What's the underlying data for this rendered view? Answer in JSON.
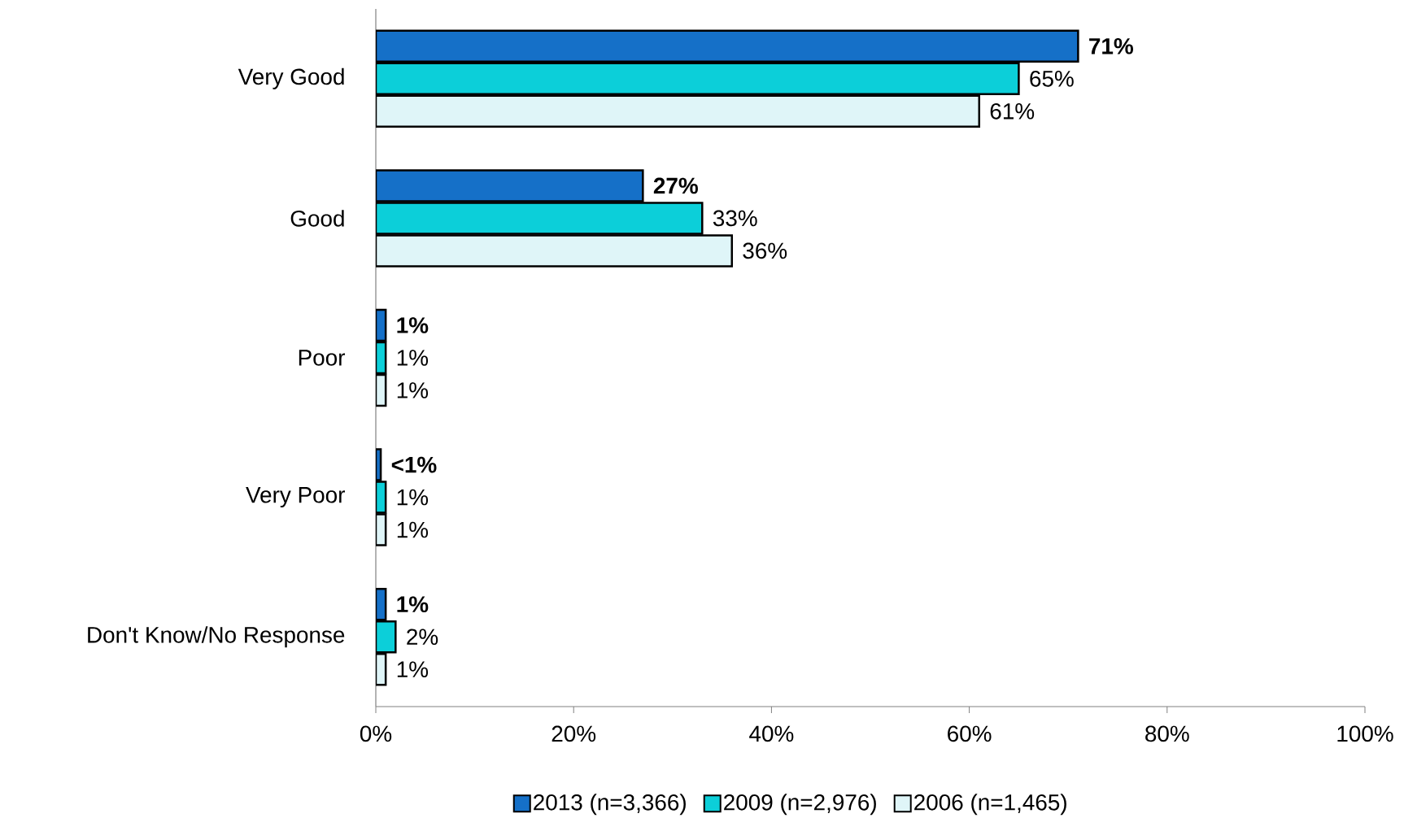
{
  "chart_data": {
    "type": "bar",
    "orientation": "horizontal",
    "categories": [
      "Very Good",
      "Good",
      "Poor",
      "Very Poor",
      "Don't Know/No Response"
    ],
    "series": [
      {
        "name": "2013 (n=3,366)",
        "color": "#1570c8",
        "values": [
          71,
          27,
          1,
          0.5,
          1
        ],
        "value_labels": [
          "71%",
          "27%",
          "1%",
          "<1%",
          "1%"
        ]
      },
      {
        "name": "2009 (n=2,976)",
        "color": "#0ccfd9",
        "values": [
          65,
          33,
          1,
          1,
          2
        ],
        "value_labels": [
          "65%",
          "33%",
          "1%",
          "1%",
          "2%"
        ]
      },
      {
        "name": "2006 (n=1,465)",
        "color": "#dff5f8",
        "values": [
          61,
          36,
          1,
          1,
          1
        ],
        "value_labels": [
          "61%",
          "36%",
          "1%",
          "1%",
          "1%"
        ]
      }
    ],
    "xlim": [
      0,
      100
    ],
    "xticks": [
      {
        "value": 0,
        "label": "0%"
      },
      {
        "value": 20,
        "label": "20%"
      },
      {
        "value": 40,
        "label": "40%"
      },
      {
        "value": 60,
        "label": "60%"
      },
      {
        "value": 80,
        "label": "80%"
      },
      {
        "value": 100,
        "label": "100%"
      }
    ],
    "grid": false,
    "legend": "bottom"
  }
}
